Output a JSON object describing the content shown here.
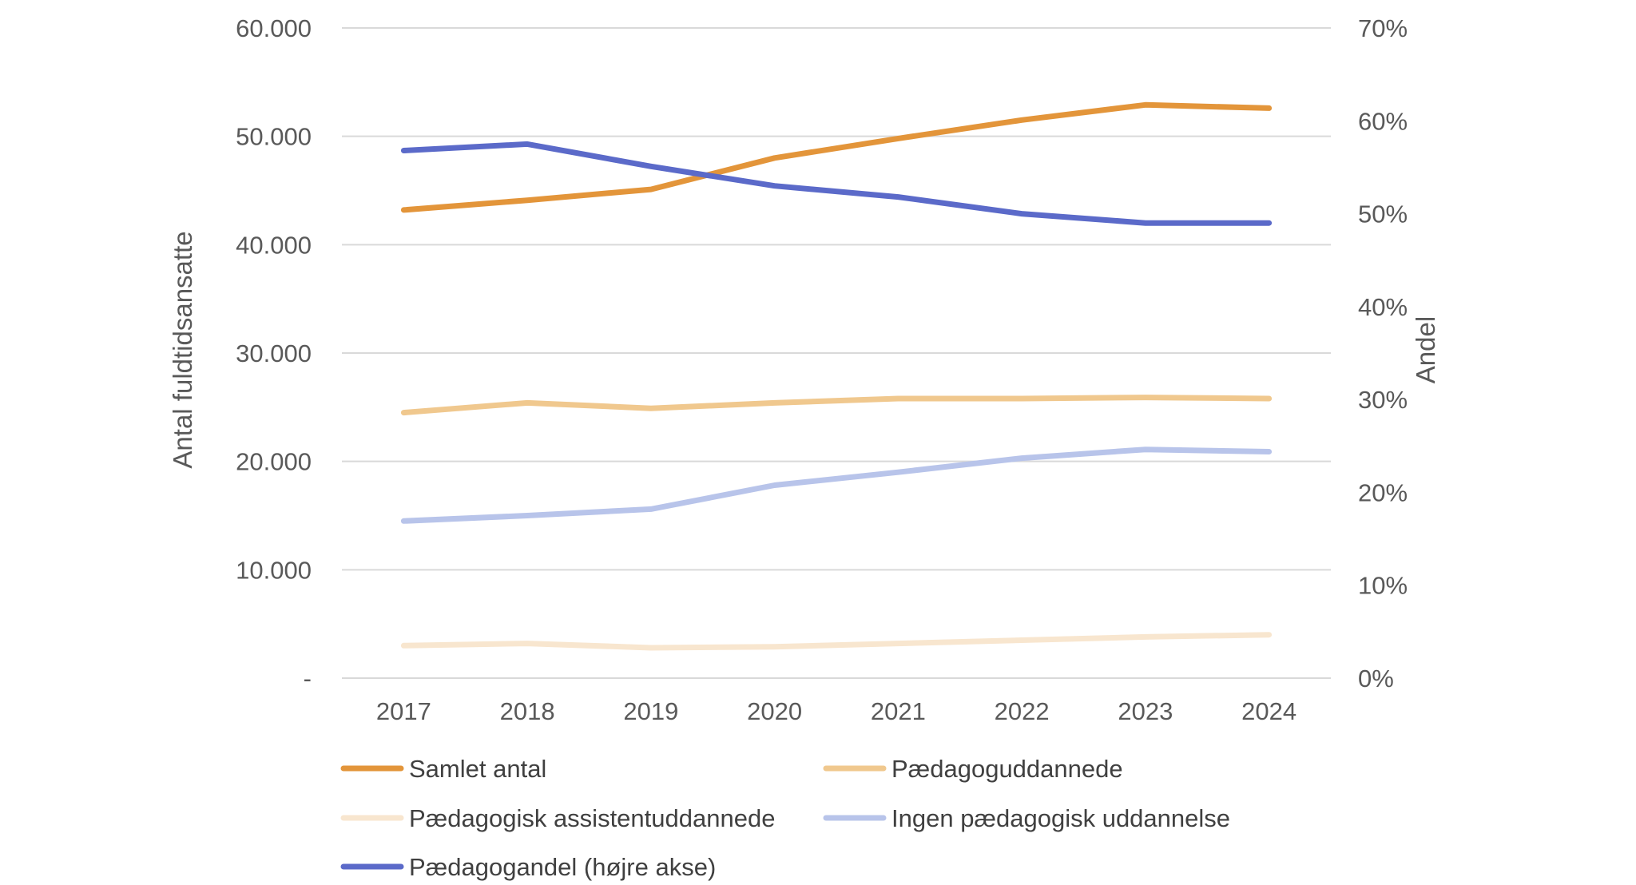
{
  "chart_data": {
    "type": "line",
    "categories": [
      "2017",
      "2018",
      "2019",
      "2020",
      "2021",
      "2022",
      "2023",
      "2024"
    ],
    "y_left": {
      "label": "Antal fuldtidsansatte",
      "ylim": [
        0,
        60000
      ],
      "ticks": [
        0,
        10000,
        20000,
        30000,
        40000,
        50000,
        60000
      ],
      "tick_labels": [
        "-",
        "10.000",
        "20.000",
        "30.000",
        "40.000",
        "50.000",
        "60.000"
      ]
    },
    "y_right": {
      "label": "Andel",
      "ylim": [
        0,
        0.7
      ],
      "ticks": [
        0,
        0.1,
        0.2,
        0.3,
        0.4,
        0.5,
        0.6,
        0.7
      ],
      "tick_labels": [
        "0%",
        "10%",
        "20%",
        "30%",
        "40%",
        "50%",
        "60%",
        "70%"
      ]
    },
    "grid": true,
    "legend_position": "bottom",
    "series": [
      {
        "name": "Samlet antal",
        "axis": "left",
        "color": "#e3953a",
        "values": [
          43200,
          44100,
          45100,
          48000,
          49800,
          51500,
          52900,
          52600
        ]
      },
      {
        "name": "Pædagoguddannede",
        "axis": "left",
        "color": "#f0c88e",
        "values": [
          24500,
          25400,
          24900,
          25400,
          25800,
          25800,
          25900,
          25800
        ]
      },
      {
        "name": "Pædagogisk assistentuddannede",
        "axis": "left",
        "color": "#f8e6cf",
        "values": [
          3000,
          3200,
          2800,
          2900,
          3200,
          3500,
          3800,
          4000
        ]
      },
      {
        "name": "Ingen pædagogisk uddannelse",
        "axis": "left",
        "color": "#b8c4ea",
        "values": [
          14500,
          15000,
          15600,
          17800,
          19000,
          20300,
          21100,
          20900
        ]
      },
      {
        "name": "Pædagogandel (højre akse)",
        "axis": "right",
        "color": "#5b6ac9",
        "values": [
          0.568,
          0.575,
          0.551,
          0.53,
          0.518,
          0.5,
          0.49,
          0.49
        ]
      }
    ]
  }
}
